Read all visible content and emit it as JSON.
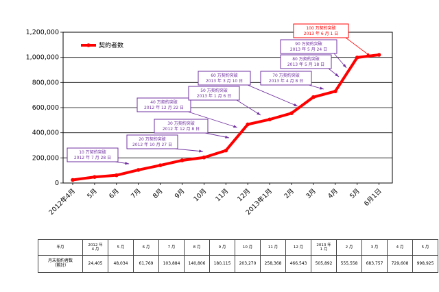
{
  "chart_data": {
    "type": "line",
    "title": "",
    "xlabel": "",
    "ylabel": "",
    "ylim": [
      0,
      1200000
    ],
    "yticks": [
      "0",
      "200,000",
      "400,000",
      "600,000",
      "800,000",
      "1,000,000",
      "1,200,000"
    ],
    "ytick_values": [
      0,
      200000,
      400000,
      600000,
      800000,
      1000000,
      1200000
    ],
    "x_labels": [
      "2012年4月",
      "5月",
      "6月",
      "7月",
      "8月",
      "9月",
      "10月",
      "11月",
      "12月",
      "2013年1月",
      "2月",
      "3月",
      "4月",
      "5月",
      "6月1日"
    ],
    "grid": "horizontal",
    "legend_position": "top-left",
    "series": [
      {
        "name": "契約者数",
        "color": "#ff0000",
        "values": [
          24405,
          48034,
          61769,
          103884,
          140806,
          180115,
          203270,
          258368,
          466543,
          505892,
          555558,
          683757,
          729608,
          998925,
          1020000
        ]
      }
    ],
    "annotations": [
      {
        "line1": "10 万契約突破",
        "line2": "2012 年 7 月 28 日",
        "x_index": 2.6,
        "value": 100000
      },
      {
        "line1": "20 万契約突破",
        "line2": "2012 年 10 月 27 日",
        "x_index": 5.6,
        "value": 200000
      },
      {
        "line1": "30 万契約突破",
        "line2": "2012 年 12 月 8 日",
        "x_index": 7.6,
        "value": 300000
      },
      {
        "line1": "40 万契約突破",
        "line2": "2012 年 12 月 22 日",
        "x_index": 7.9,
        "value": 400000
      },
      {
        "line1": "50 万契約突破",
        "line2": "2013 年 1 月 6 日",
        "x_index": 8.7,
        "value": 500000
      },
      {
        "line1": "60 万契約突破",
        "line2": "2013 年 3 月 10 日",
        "x_index": 10.3,
        "value": 600000
      },
      {
        "line1": "70 万契約突破",
        "line2": "2013 年 4 月 8 日",
        "x_index": 11.4,
        "value": 700000
      },
      {
        "line1": "80 万契約突破",
        "line2": "2013 年 5 月 18 日",
        "x_index": 12.2,
        "value": 800000
      },
      {
        "line1": "90 万契約突破",
        "line2": "2013 年 5 月 24 日",
        "x_index": 12.4,
        "value": 900000
      },
      {
        "line1": "100 万契約突破",
        "line2": "2013 年 6 月 1 日",
        "x_index": 13.2,
        "value": 1000000,
        "highlight": true
      }
    ]
  },
  "table": {
    "header_label": "年月",
    "value_label_line1": "月末契約者数",
    "value_label_line2": "（累計）",
    "columns": [
      {
        "h1": "2012 年",
        "h2": "4 月",
        "v": "24,405"
      },
      {
        "h1": "5 月",
        "h2": "",
        "v": "48,034"
      },
      {
        "h1": "6 月",
        "h2": "",
        "v": "61,769"
      },
      {
        "h1": "7 月",
        "h2": "",
        "v": "103,884"
      },
      {
        "h1": "8 月",
        "h2": "",
        "v": "140,806"
      },
      {
        "h1": "9 月",
        "h2": "",
        "v": "180,115"
      },
      {
        "h1": "10 月",
        "h2": "",
        "v": "203,270"
      },
      {
        "h1": "11 月",
        "h2": "",
        "v": "258,368"
      },
      {
        "h1": "12 月",
        "h2": "",
        "v": "466,543"
      },
      {
        "h1": "2013 年",
        "h2": "1 月",
        "v": "505,892"
      },
      {
        "h1": "2 月",
        "h2": "",
        "v": "555,558"
      },
      {
        "h1": "3 月",
        "h2": "",
        "v": "683,757"
      },
      {
        "h1": "4 月",
        "h2": "",
        "v": "729,608"
      },
      {
        "h1": "5 月",
        "h2": "",
        "v": "998,925"
      }
    ]
  },
  "colors": {
    "line": "#ff0000",
    "callout_border": "#7030a0",
    "callout_text": "#7030a0",
    "highlight_border": "#ff0000",
    "highlight_text": "#ff0000"
  }
}
